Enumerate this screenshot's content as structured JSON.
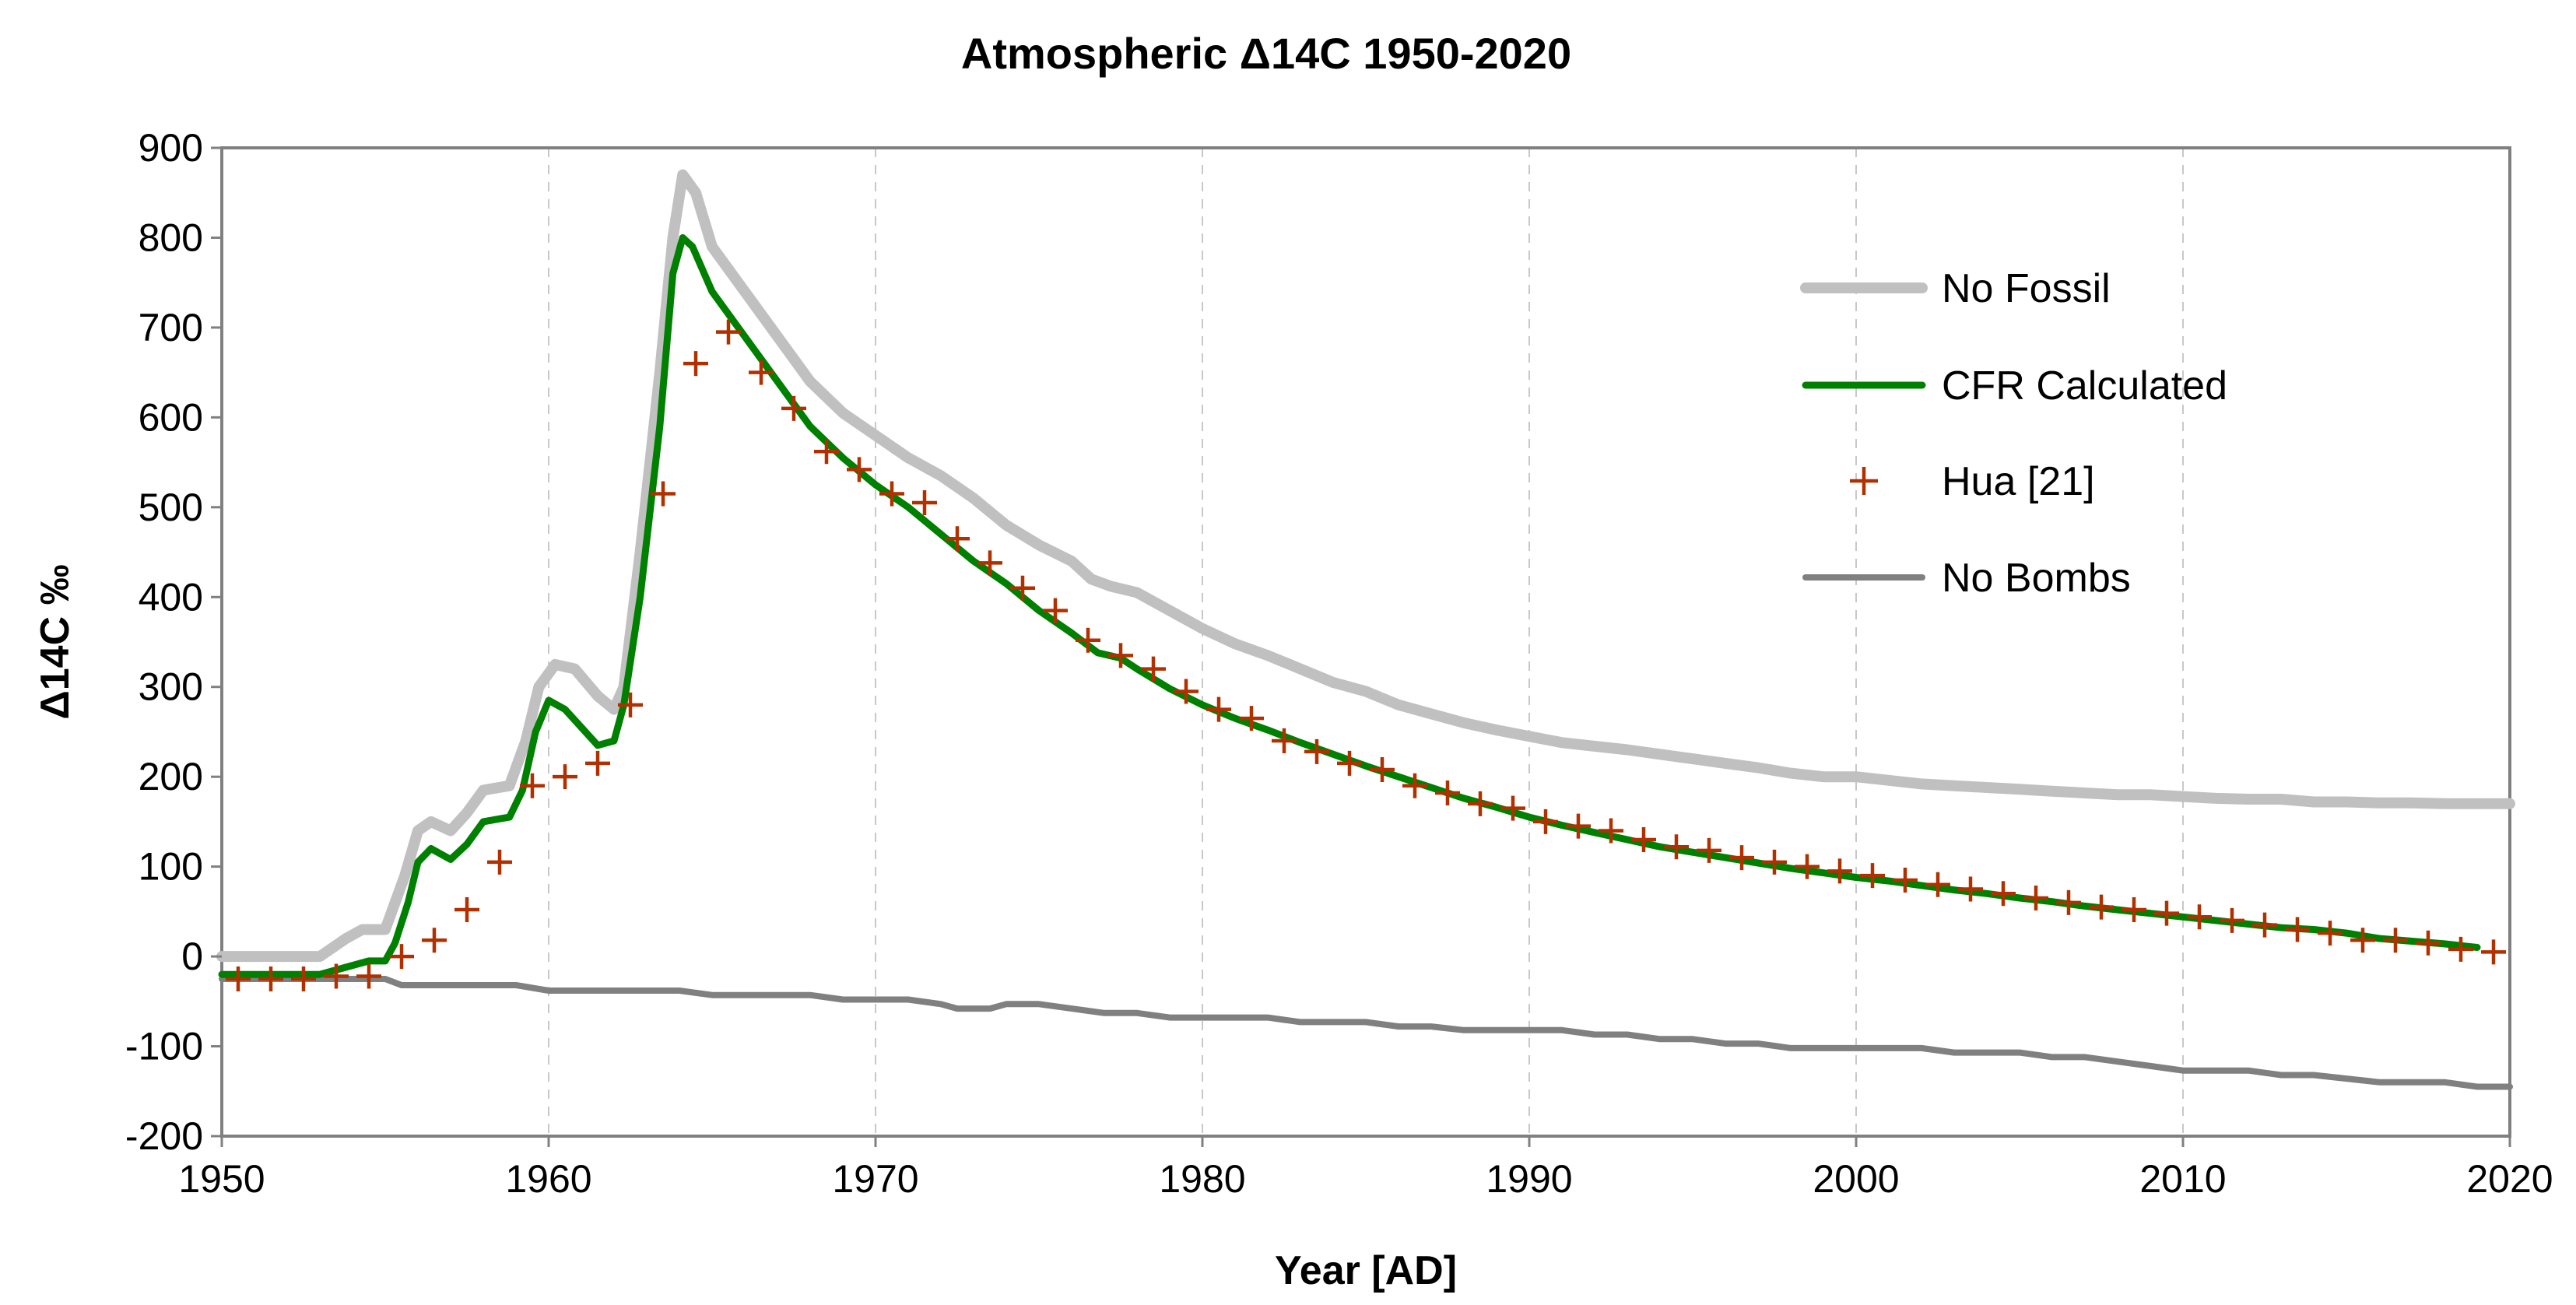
{
  "chart_data": {
    "type": "line",
    "title": "Atmospheric Δ14C 1950-2020",
    "xlabel": "Year [AD]",
    "ylabel": "Δ14C ‰",
    "xlim": [
      1950,
      2020
    ],
    "ylim": [
      -200,
      900
    ],
    "x_ticks": [
      1950,
      1960,
      1970,
      1980,
      1990,
      2000,
      2010,
      2020
    ],
    "y_ticks": [
      -200,
      -100,
      0,
      100,
      200,
      300,
      400,
      500,
      600,
      700,
      800,
      900
    ],
    "grid": "vertical dashed",
    "legend_position": "top-right",
    "series": [
      {
        "name": "No Fossil",
        "style": "line",
        "color": "#c0c0c0",
        "points": [
          [
            1950,
            0
          ],
          [
            1953,
            0
          ],
          [
            1953.8,
            20
          ],
          [
            1954.3,
            30
          ],
          [
            1955,
            30
          ],
          [
            1955.6,
            90
          ],
          [
            1956,
            140
          ],
          [
            1956.4,
            150
          ],
          [
            1957,
            140
          ],
          [
            1957.5,
            160
          ],
          [
            1958,
            185
          ],
          [
            1958.8,
            190
          ],
          [
            1959.3,
            240
          ],
          [
            1959.7,
            300
          ],
          [
            1960.2,
            325
          ],
          [
            1960.8,
            320
          ],
          [
            1961.5,
            290
          ],
          [
            1962,
            275
          ],
          [
            1962.3,
            300
          ],
          [
            1962.8,
            450
          ],
          [
            1963.4,
            650
          ],
          [
            1963.8,
            800
          ],
          [
            1964.1,
            870
          ],
          [
            1964.5,
            850
          ],
          [
            1965,
            790
          ],
          [
            1966,
            740
          ],
          [
            1967,
            690
          ],
          [
            1968,
            640
          ],
          [
            1969,
            605
          ],
          [
            1970,
            580
          ],
          [
            1971,
            555
          ],
          [
            1972,
            535
          ],
          [
            1973,
            510
          ],
          [
            1974,
            480
          ],
          [
            1975,
            458
          ],
          [
            1976,
            440
          ],
          [
            1976.6,
            420
          ],
          [
            1977.2,
            412
          ],
          [
            1978,
            405
          ],
          [
            1979,
            385
          ],
          [
            1980,
            365
          ],
          [
            1981,
            348
          ],
          [
            1982,
            335
          ],
          [
            1983,
            320
          ],
          [
            1984,
            305
          ],
          [
            1985,
            295
          ],
          [
            1986,
            280
          ],
          [
            1987,
            270
          ],
          [
            1988,
            260
          ],
          [
            1989,
            252
          ],
          [
            1990,
            245
          ],
          [
            1991,
            238
          ],
          [
            1992,
            234
          ],
          [
            1993,
            230
          ],
          [
            1994,
            225
          ],
          [
            1995,
            220
          ],
          [
            1996,
            215
          ],
          [
            1997,
            210
          ],
          [
            1998,
            204
          ],
          [
            1999,
            200
          ],
          [
            2000,
            200
          ],
          [
            2001,
            196
          ],
          [
            2002,
            192
          ],
          [
            2003,
            190
          ],
          [
            2004,
            188
          ],
          [
            2005,
            186
          ],
          [
            2006,
            184
          ],
          [
            2007,
            182
          ],
          [
            2008,
            180
          ],
          [
            2009,
            180
          ],
          [
            2010,
            178
          ],
          [
            2011,
            176
          ],
          [
            2012,
            175
          ],
          [
            2013,
            175
          ],
          [
            2014,
            172
          ],
          [
            2015,
            172
          ],
          [
            2016,
            171
          ],
          [
            2017,
            171
          ],
          [
            2018,
            170
          ],
          [
            2019,
            170
          ],
          [
            2020,
            170
          ]
        ]
      },
      {
        "name": "CFR Calculated",
        "style": "line",
        "color": "#008000",
        "points": [
          [
            1950,
            -20
          ],
          [
            1953,
            -20
          ],
          [
            1954,
            -10
          ],
          [
            1954.5,
            -5
          ],
          [
            1955,
            -5
          ],
          [
            1955.3,
            15
          ],
          [
            1955.7,
            60
          ],
          [
            1956,
            105
          ],
          [
            1956.4,
            120
          ],
          [
            1957,
            108
          ],
          [
            1957.5,
            125
          ],
          [
            1958,
            150
          ],
          [
            1958.8,
            155
          ],
          [
            1959.2,
            185
          ],
          [
            1959.6,
            250
          ],
          [
            1960,
            285
          ],
          [
            1960.5,
            275
          ],
          [
            1961,
            255
          ],
          [
            1961.5,
            235
          ],
          [
            1962,
            240
          ],
          [
            1962.3,
            280
          ],
          [
            1962.8,
            400
          ],
          [
            1963.4,
            590
          ],
          [
            1963.8,
            760
          ],
          [
            1964.1,
            800
          ],
          [
            1964.4,
            790
          ],
          [
            1965,
            740
          ],
          [
            1966,
            690
          ],
          [
            1967,
            640
          ],
          [
            1968,
            590
          ],
          [
            1969,
            555
          ],
          [
            1970,
            525
          ],
          [
            1971,
            500
          ],
          [
            1972,
            470
          ],
          [
            1973,
            440
          ],
          [
            1974,
            415
          ],
          [
            1975,
            385
          ],
          [
            1976,
            360
          ],
          [
            1976.8,
            338
          ],
          [
            1977.5,
            332
          ],
          [
            1978,
            320
          ],
          [
            1979,
            298
          ],
          [
            1980,
            280
          ],
          [
            1981,
            265
          ],
          [
            1982,
            252
          ],
          [
            1983,
            238
          ],
          [
            1984,
            225
          ],
          [
            1985,
            212
          ],
          [
            1986,
            200
          ],
          [
            1987,
            188
          ],
          [
            1988,
            176
          ],
          [
            1989,
            166
          ],
          [
            1990,
            155
          ],
          [
            1991,
            146
          ],
          [
            1992,
            138
          ],
          [
            1993,
            130
          ],
          [
            1994,
            122
          ],
          [
            1995,
            116
          ],
          [
            1996,
            110
          ],
          [
            1997,
            104
          ],
          [
            1998,
            98
          ],
          [
            1999,
            93
          ],
          [
            2000,
            88
          ],
          [
            2001,
            84
          ],
          [
            2002,
            79
          ],
          [
            2003,
            74
          ],
          [
            2004,
            70
          ],
          [
            2005,
            65
          ],
          [
            2006,
            61
          ],
          [
            2007,
            56
          ],
          [
            2008,
            52
          ],
          [
            2009,
            48
          ],
          [
            2010,
            44
          ],
          [
            2011,
            40
          ],
          [
            2012,
            36
          ],
          [
            2013,
            32
          ],
          [
            2014,
            30
          ],
          [
            2015,
            26
          ],
          [
            2016,
            20
          ],
          [
            2017,
            17
          ],
          [
            2018,
            14
          ],
          [
            2019,
            10
          ]
        ]
      },
      {
        "name": "Hua [21]",
        "style": "marker",
        "color": "#b03000",
        "points": [
          [
            1950.5,
            -25
          ],
          [
            1951.5,
            -25
          ],
          [
            1952.5,
            -25
          ],
          [
            1953.5,
            -22
          ],
          [
            1954.5,
            -22
          ],
          [
            1955.5,
            0
          ],
          [
            1956.5,
            18
          ],
          [
            1957.5,
            52
          ],
          [
            1958.5,
            105
          ],
          [
            1959.5,
            190
          ],
          [
            1960.5,
            200
          ],
          [
            1961.5,
            215
          ],
          [
            1962.5,
            280
          ],
          [
            1963.5,
            515
          ],
          [
            1964.5,
            660
          ],
          [
            1965.5,
            695
          ],
          [
            1966.5,
            650
          ],
          [
            1967.5,
            610
          ],
          [
            1968.5,
            562
          ],
          [
            1969.5,
            542
          ],
          [
            1970.5,
            515
          ],
          [
            1971.5,
            505
          ],
          [
            1972.5,
            465
          ],
          [
            1973.5,
            438
          ],
          [
            1974.5,
            410
          ],
          [
            1975.5,
            385
          ],
          [
            1976.5,
            352
          ],
          [
            1977.5,
            335
          ],
          [
            1978.5,
            320
          ],
          [
            1979.5,
            295
          ],
          [
            1980.5,
            275
          ],
          [
            1981.5,
            265
          ],
          [
            1982.5,
            240
          ],
          [
            1983.5,
            228
          ],
          [
            1984.5,
            215
          ],
          [
            1985.5,
            208
          ],
          [
            1986.5,
            190
          ],
          [
            1987.5,
            182
          ],
          [
            1988.5,
            170
          ],
          [
            1989.5,
            165
          ],
          [
            1990.5,
            150
          ],
          [
            1991.5,
            145
          ],
          [
            1992.5,
            140
          ],
          [
            1993.5,
            130
          ],
          [
            1994.5,
            122
          ],
          [
            1995.5,
            118
          ],
          [
            1996.5,
            110
          ],
          [
            1997.5,
            105
          ],
          [
            1998.5,
            100
          ],
          [
            1999.5,
            95
          ],
          [
            2000.5,
            90
          ],
          [
            2001.5,
            85
          ],
          [
            2002.5,
            80
          ],
          [
            2003.5,
            75
          ],
          [
            2004.5,
            70
          ],
          [
            2005.5,
            65
          ],
          [
            2006.5,
            60
          ],
          [
            2007.5,
            55
          ],
          [
            2008.5,
            52
          ],
          [
            2009.5,
            48
          ],
          [
            2010.5,
            44
          ],
          [
            2011.5,
            40
          ],
          [
            2012.5,
            35
          ],
          [
            2013.5,
            30
          ],
          [
            2014.5,
            26
          ],
          [
            2015.5,
            18
          ],
          [
            2016.5,
            18
          ],
          [
            2017.5,
            15
          ],
          [
            2018.5,
            8
          ],
          [
            2019.5,
            5
          ]
        ]
      },
      {
        "name": "No Bombs",
        "style": "line",
        "color": "#808080",
        "points": [
          [
            1950,
            -25
          ],
          [
            1955,
            -25
          ],
          [
            1955.5,
            -32
          ],
          [
            1959,
            -32
          ],
          [
            1960,
            -38
          ],
          [
            1964,
            -38
          ],
          [
            1965,
            -43
          ],
          [
            1968,
            -43
          ],
          [
            1969,
            -48
          ],
          [
            1971,
            -48
          ],
          [
            1972,
            -53
          ],
          [
            1972.5,
            -58
          ],
          [
            1973.5,
            -58
          ],
          [
            1974,
            -53
          ],
          [
            1975,
            -53
          ],
          [
            1976,
            -58
          ],
          [
            1977,
            -63
          ],
          [
            1978,
            -63
          ],
          [
            1979,
            -68
          ],
          [
            1982,
            -68
          ],
          [
            1983,
            -73
          ],
          [
            1985,
            -73
          ],
          [
            1986,
            -78
          ],
          [
            1987,
            -78
          ],
          [
            1988,
            -82
          ],
          [
            1991,
            -82
          ],
          [
            1992,
            -87
          ],
          [
            1993,
            -87
          ],
          [
            1994,
            -92
          ],
          [
            1995,
            -92
          ],
          [
            1996,
            -97
          ],
          [
            1997,
            -97
          ],
          [
            1998,
            -102
          ],
          [
            2002,
            -102
          ],
          [
            2003,
            -107
          ],
          [
            2005,
            -107
          ],
          [
            2006,
            -112
          ],
          [
            2007,
            -112
          ],
          [
            2008,
            -117
          ],
          [
            2009,
            -122
          ],
          [
            2010,
            -127
          ],
          [
            2012,
            -127
          ],
          [
            2013,
            -132
          ],
          [
            2014,
            -132
          ],
          [
            2016,
            -140
          ],
          [
            2018,
            -140
          ],
          [
            2019,
            -145
          ],
          [
            2020,
            -145
          ]
        ]
      }
    ]
  }
}
